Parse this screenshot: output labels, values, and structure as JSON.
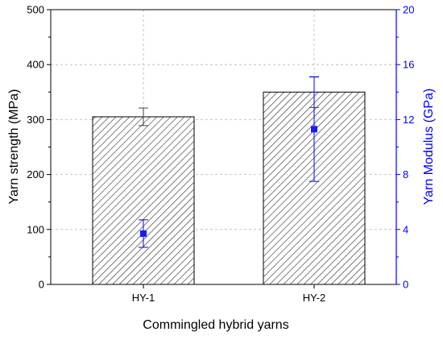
{
  "chart_data": {
    "type": "bar",
    "categories": [
      "HY-1",
      "HY-2"
    ],
    "xlabel": "Commingled hybrid yarns",
    "ylabel": "Yarn strength (MPa)",
    "y2label": "Yarn Modulus (GPa)",
    "ylim": [
      0,
      500
    ],
    "y2lim": [
      0,
      20
    ],
    "yticks": [
      "0",
      "100",
      "200",
      "300",
      "400",
      "500"
    ],
    "y2ticks": [
      "0",
      "4",
      "8",
      "12",
      "16",
      "20"
    ],
    "grid": true,
    "series": [
      {
        "axis": "left",
        "kind": "bar",
        "pattern": "diagonal-hatch",
        "values": [
          305,
          350
        ],
        "error": [
          16,
          28
        ]
      },
      {
        "axis": "right",
        "kind": "scatter",
        "marker": "square",
        "values": [
          3.7,
          11.3
        ],
        "error": [
          1.0,
          3.8
        ]
      }
    ],
    "colors": {
      "axis_left": "#000000",
      "axis_right": "#0000ff",
      "points": "#1a1aff",
      "grid": "#b8b8b8"
    }
  }
}
